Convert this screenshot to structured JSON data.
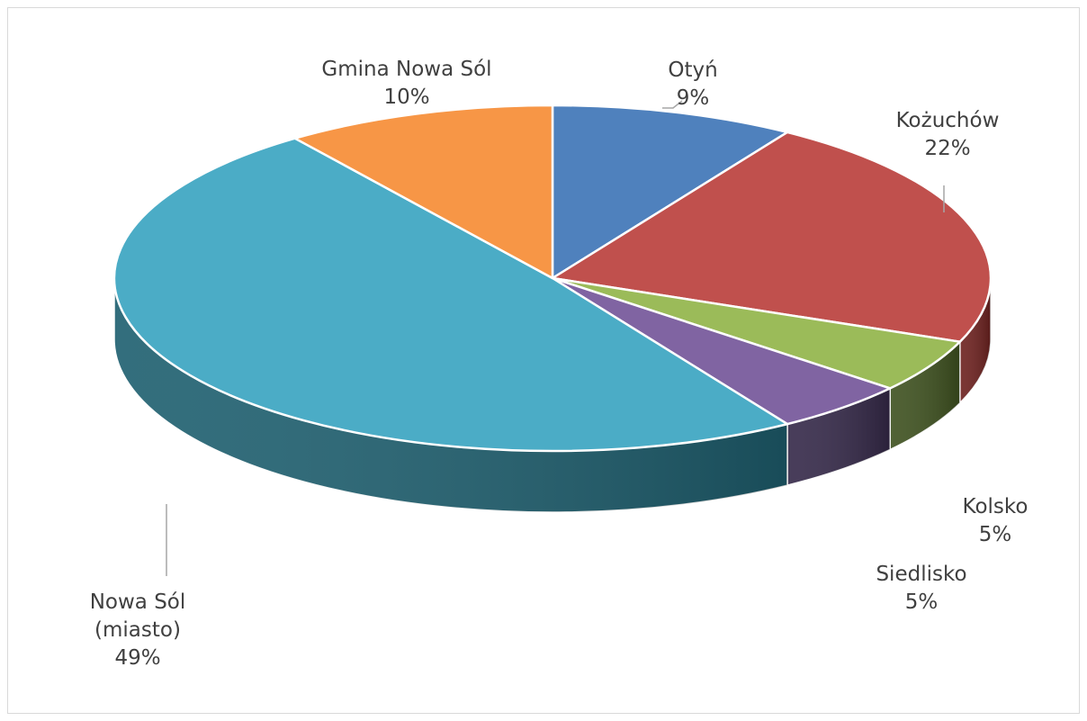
{
  "chart_data": {
    "type": "pie",
    "style": "3d",
    "title": "",
    "slices": [
      {
        "label": "Otyń",
        "value": 9,
        "percent_label": "9%",
        "color": "#4f81bd",
        "side_color": "#2c4d75"
      },
      {
        "label": "Kożuchów",
        "value": 22,
        "percent_label": "22%",
        "color": "#c0504d",
        "side_color": "#6e2220"
      },
      {
        "label": "Kolsko",
        "value": 5,
        "percent_label": "5%",
        "color": "#9bbb59",
        "side_color": "#3f5220"
      },
      {
        "label": "Siedlisko",
        "value": 5,
        "percent_label": "5%",
        "color": "#8064a2",
        "side_color": "#362a4a"
      },
      {
        "label": "Nowa Sól (miasto)",
        "label_lines": [
          "Nowa Sól",
          "(miasto)"
        ],
        "value": 49,
        "percent_label": "49%",
        "color": "#4bacc6",
        "side_color": "#1f6070"
      },
      {
        "label": "Gmina Nowa Sól",
        "value": 10,
        "percent_label": "10%",
        "color": "#f79646",
        "side_color": "#a85a1d"
      }
    ],
    "legend": "none",
    "data_labels": "category name and percentage"
  }
}
